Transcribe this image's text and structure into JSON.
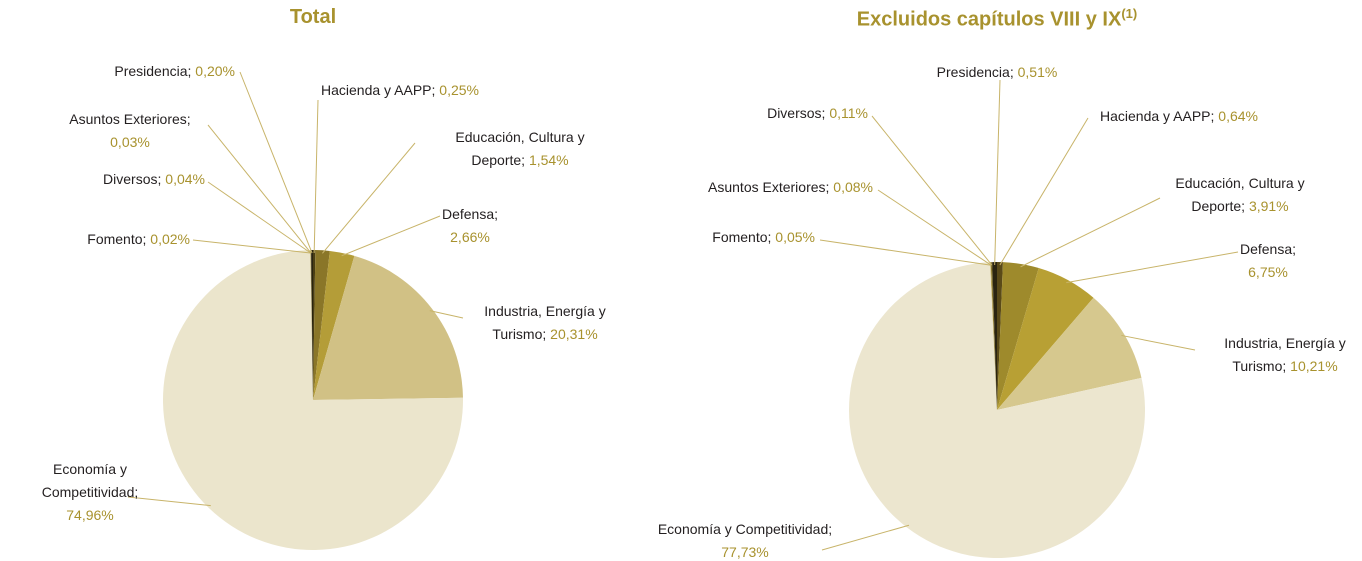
{
  "chart_data": [
    {
      "type": "pie",
      "title": "Total",
      "label_separator": ";",
      "categories": [
        "Hacienda y AAPP",
        "Educación, Cultura y Deporte",
        "Defensa",
        "Industria, Energía y Turismo",
        "Economía y Competitividad",
        "Fomento",
        "Diversos",
        "Asuntos Exteriores",
        "Presidencia"
      ],
      "values": [
        0.25,
        1.54,
        2.66,
        20.31,
        74.96,
        0.02,
        0.04,
        0.03,
        0.2
      ],
      "value_labels": [
        "0,25%",
        "1,54%",
        "2,66%",
        "20,31%",
        "74,96%",
        "0,02%",
        "0,04%",
        "0,03%",
        "0,20%"
      ],
      "colors": [
        "#4a3e14",
        "#8a7628",
        "#b49d38",
        "#d1c185",
        "#ebe5cc",
        "#c8b46a",
        "#a08a30",
        "#6e5e20",
        "#2a2410"
      ]
    },
    {
      "type": "pie",
      "title": "Excluidos capítulos VIII y IX",
      "title_note": "(1)",
      "label_separator": ";",
      "categories": [
        "Hacienda y AAPP",
        "Educación, Cultura y Deporte",
        "Defensa",
        "Industria, Energía y Turismo",
        "Economía y Competitividad",
        "Fomento",
        "Asuntos Exteriores",
        "Diversos",
        "Presidencia"
      ],
      "values": [
        0.64,
        3.91,
        6.75,
        10.21,
        77.73,
        0.05,
        0.08,
        0.11,
        0.51
      ],
      "value_labels": [
        "0,64%",
        "3,91%",
        "6,75%",
        "10,21%",
        "77,73%",
        "0,05%",
        "0,08%",
        "0,11%",
        "0,51%"
      ],
      "colors": [
        "#5a4a18",
        "#9e8a2c",
        "#b8a034",
        "#d6c88e",
        "#ece6cf",
        "#c8b46a",
        "#a08a30",
        "#6e5e20",
        "#2a2410"
      ]
    }
  ]
}
